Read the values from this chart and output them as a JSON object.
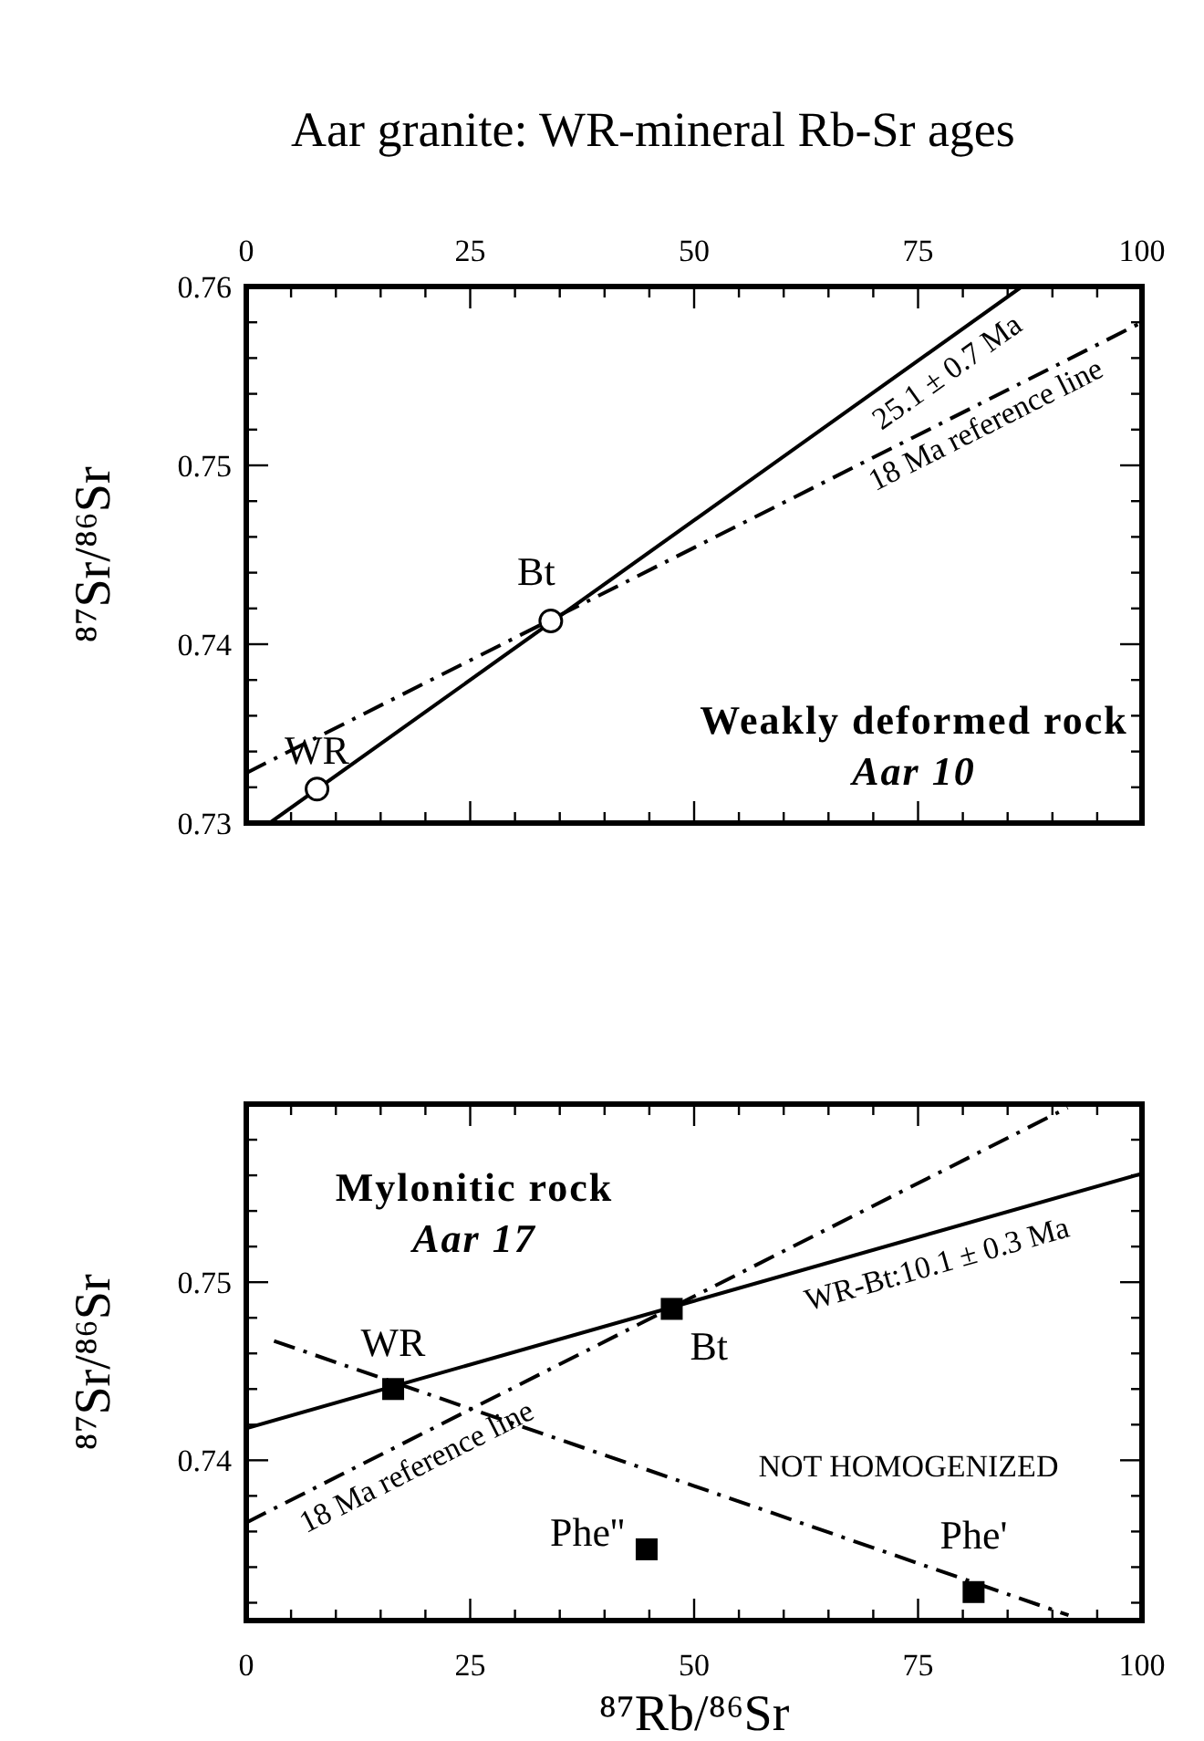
{
  "chart_data": [
    {
      "type": "scatter",
      "title": "Aar granite: WR-mineral Rb-Sr ages",
      "ylabel": "⁸⁷Sr/⁸⁶Sr",
      "xlim": [
        0,
        100
      ],
      "ylim": [
        0.73,
        0.76
      ],
      "xticks": [
        0,
        {
          "value": 5,
          "label": null
        },
        {
          "value": 10,
          "label": null
        },
        {
          "value": 15,
          "label": null
        },
        {
          "value": 20,
          "label": null
        },
        25,
        {
          "value": 30,
          "label": null
        },
        {
          "value": 35,
          "label": null
        },
        {
          "value": 40,
          "label": null
        },
        {
          "value": 45,
          "label": null
        },
        50,
        {
          "value": 55,
          "label": null
        },
        {
          "value": 60,
          "label": null
        },
        {
          "value": 65,
          "label": null
        },
        {
          "value": 70,
          "label": null
        },
        75,
        {
          "value": 80,
          "label": null
        },
        {
          "value": 85,
          "label": null
        },
        {
          "value": 90,
          "label": null
        },
        {
          "value": 95,
          "label": null
        },
        100
      ],
      "yticks": [
        0.73,
        {
          "value": 0.732,
          "label": null
        },
        {
          "value": 0.734,
          "label": null
        },
        {
          "value": 0.736,
          "label": null
        },
        {
          "value": 0.738,
          "label": null
        },
        0.74,
        {
          "value": 0.742,
          "label": null
        },
        {
          "value": 0.744,
          "label": null
        },
        {
          "value": 0.746,
          "label": null
        },
        {
          "value": 0.748,
          "label": null
        },
        0.75,
        {
          "value": 0.752,
          "label": null
        },
        {
          "value": 0.754,
          "label": null
        },
        {
          "value": 0.756,
          "label": null
        },
        {
          "value": 0.758,
          "label": null
        },
        0.76
      ],
      "series": [
        {
          "type": "line",
          "color": "#000000",
          "line_style": "solid",
          "x": [
            2.6,
            86.6
          ],
          "values": [
            0.73,
            0.76
          ]
        },
        {
          "type": "line",
          "color": "#000000",
          "line_style": "dashed",
          "x": [
            0,
            100
          ],
          "values": [
            0.7328,
            0.758
          ]
        },
        {
          "name": "WR",
          "color": "#000000",
          "marker": "circle",
          "x": [
            7.9
          ],
          "values": [
            0.7319
          ]
        },
        {
          "name": "Bt",
          "color": "#000000",
          "marker": "circle",
          "x": [
            34
          ],
          "values": [
            0.7413
          ]
        }
      ],
      "annotations": [
        "Weakly deformed rock",
        "Aar 10",
        "25.1 ± 0.7 Ma",
        "18 Ma reference line"
      ]
    },
    {
      "type": "scatter",
      "xlabel": "⁸⁷Rb/⁸⁶Sr",
      "ylabel": "⁸⁷Sr/⁸⁶Sr",
      "xlim": [
        0,
        100
      ],
      "ylim": [
        0.731,
        0.76
      ],
      "xticks": [
        0,
        {
          "value": 5,
          "label": null
        },
        {
          "value": 10,
          "label": null
        },
        {
          "value": 15,
          "label": null
        },
        {
          "value": 20,
          "label": null
        },
        25,
        {
          "value": 30,
          "label": null
        },
        {
          "value": 35,
          "label": null
        },
        {
          "value": 40,
          "label": null
        },
        {
          "value": 45,
          "label": null
        },
        50,
        {
          "value": 55,
          "label": null
        },
        {
          "value": 60,
          "label": null
        },
        {
          "value": 65,
          "label": null
        },
        {
          "value": 70,
          "label": null
        },
        75,
        {
          "value": 80,
          "label": null
        },
        {
          "value": 85,
          "label": null
        },
        {
          "value": 90,
          "label": null
        },
        {
          "value": 95,
          "label": null
        },
        100
      ],
      "yticks": [
        {
          "value": 0.732,
          "label": null
        },
        {
          "value": 0.734,
          "label": null
        },
        {
          "value": 0.736,
          "label": null
        },
        {
          "value": 0.738,
          "label": null
        },
        0.74,
        {
          "value": 0.742,
          "label": null
        },
        {
          "value": 0.744,
          "label": null
        },
        {
          "value": 0.746,
          "label": null
        },
        {
          "value": 0.748,
          "label": null
        },
        0.75,
        {
          "value": 0.752,
          "label": null
        },
        {
          "value": 0.754,
          "label": null
        },
        {
          "value": 0.756,
          "label": null
        },
        {
          "value": 0.758,
          "label": null
        }
      ],
      "series": [
        {
          "type": "line",
          "color": "#000000",
          "line_style": "solid",
          "x": [
            0,
            100
          ],
          "values": [
            0.7418,
            0.7561
          ]
        },
        {
          "type": "line",
          "color": "#000000",
          "line_style": "dashed",
          "x": [
            0,
            91.7
          ],
          "values": [
            0.7365,
            0.7598
          ]
        },
        {
          "type": "line",
          "color": "#000000",
          "line_style": "dashed",
          "x": [
            3.1,
            91.8
          ],
          "values": [
            0.7467,
            0.7313
          ]
        },
        {
          "name": "WR",
          "color": "#000000",
          "marker": "square",
          "x": [
            16.4
          ],
          "values": [
            0.744
          ]
        },
        {
          "name": "Bt",
          "color": "#000000",
          "marker": "square",
          "x": [
            47.5
          ],
          "values": [
            0.7485
          ]
        },
        {
          "name": "Phe''",
          "color": "#000000",
          "marker": "square",
          "x": [
            44.7
          ],
          "values": [
            0.735
          ]
        },
        {
          "name": "Phe'",
          "color": "#000000",
          "marker": "square",
          "x": [
            81.2
          ],
          "values": [
            0.7326
          ]
        }
      ],
      "annotations": [
        "Mylonitic rock",
        "Aar 17",
        "WR-Bt:10.1 ± 0.3 Ma",
        "18 Ma reference line",
        "NOT HOMOGENIZED"
      ]
    }
  ]
}
